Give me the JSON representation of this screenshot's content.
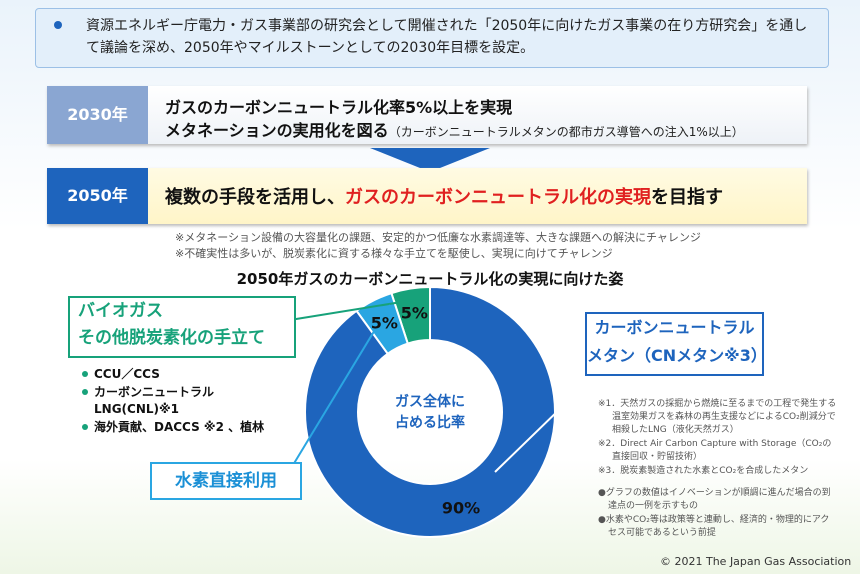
{
  "header": {
    "text": "資源エネルギー庁電力・ガス事業部の研究会として開催された「2050年に向けたガス事業の在り方研究会」を通して議論を深め、2050年やマイルストーンとしての2030年目標を設定。"
  },
  "targets": [
    {
      "year": "2030年",
      "line1": "ガスのカーボンニュートラル化率5%以上を実現",
      "line2": "メタネーションの実用化を図る",
      "note": "（カーボンニュートラルメタンの都市ガス導管への注入1%以上）"
    },
    {
      "year": "2050年",
      "pre": "複数の手段を活用し、",
      "highlight": "ガスのカーボンニュートラル化の実現",
      "post": "を目指す"
    }
  ],
  "challenges": [
    "※メタネーション設備の大容量化の課題、安定的かつ低廉な水素調達等、大きな課題への解決にチャレンジ",
    "※不確実性は多いが、脱炭素化に資する様々な手立てを駆使し、実現に向けてチャレンジ"
  ],
  "chart_data": {
    "type": "pie",
    "title": "2050年ガスのカーボンニュートラル化の実現に向けた姿",
    "center_label": "ガス全体に\n占める比率",
    "categories": [
      "カーボンニュートラル\nメタン（CNメタン※3）",
      "水素直接利用",
      "バイオガス\nその他脱炭素化の手立て"
    ],
    "values": [
      90,
      5,
      5
    ],
    "value_labels": [
      "90%",
      "5%",
      "5%"
    ],
    "colors": [
      "#1e64bd",
      "#2aa6e2",
      "#17a27a"
    ]
  },
  "biogas_items": [
    "CCU／CCS",
    "カーボンニュートラル\nLNG(CNL)※1",
    "海外貢献、DACCS ※2 、植林"
  ],
  "footnotes": [
    "※1．天然ガスの採掘から燃焼に至るまでの工程で発生する温室効果ガスを森林の再生支援などによるCO₂削減分で相殺したLNG（液化天然ガス）",
    "※2．Direct Air Carbon Capture with Storage（CO₂の直接回収・貯留技術）",
    "※3．脱炭素製造された水素とCO₂を合成したメタン"
  ],
  "notes": [
    "●グラフの数値はイノベーションが順調に進んだ場合の到達点の一例を示すもの",
    "●水素やCO₂等は政策等と連動し、経済的・物理的にアクセス可能であるという前提"
  ],
  "copyright": "© 2021 The Japan Gas Association"
}
